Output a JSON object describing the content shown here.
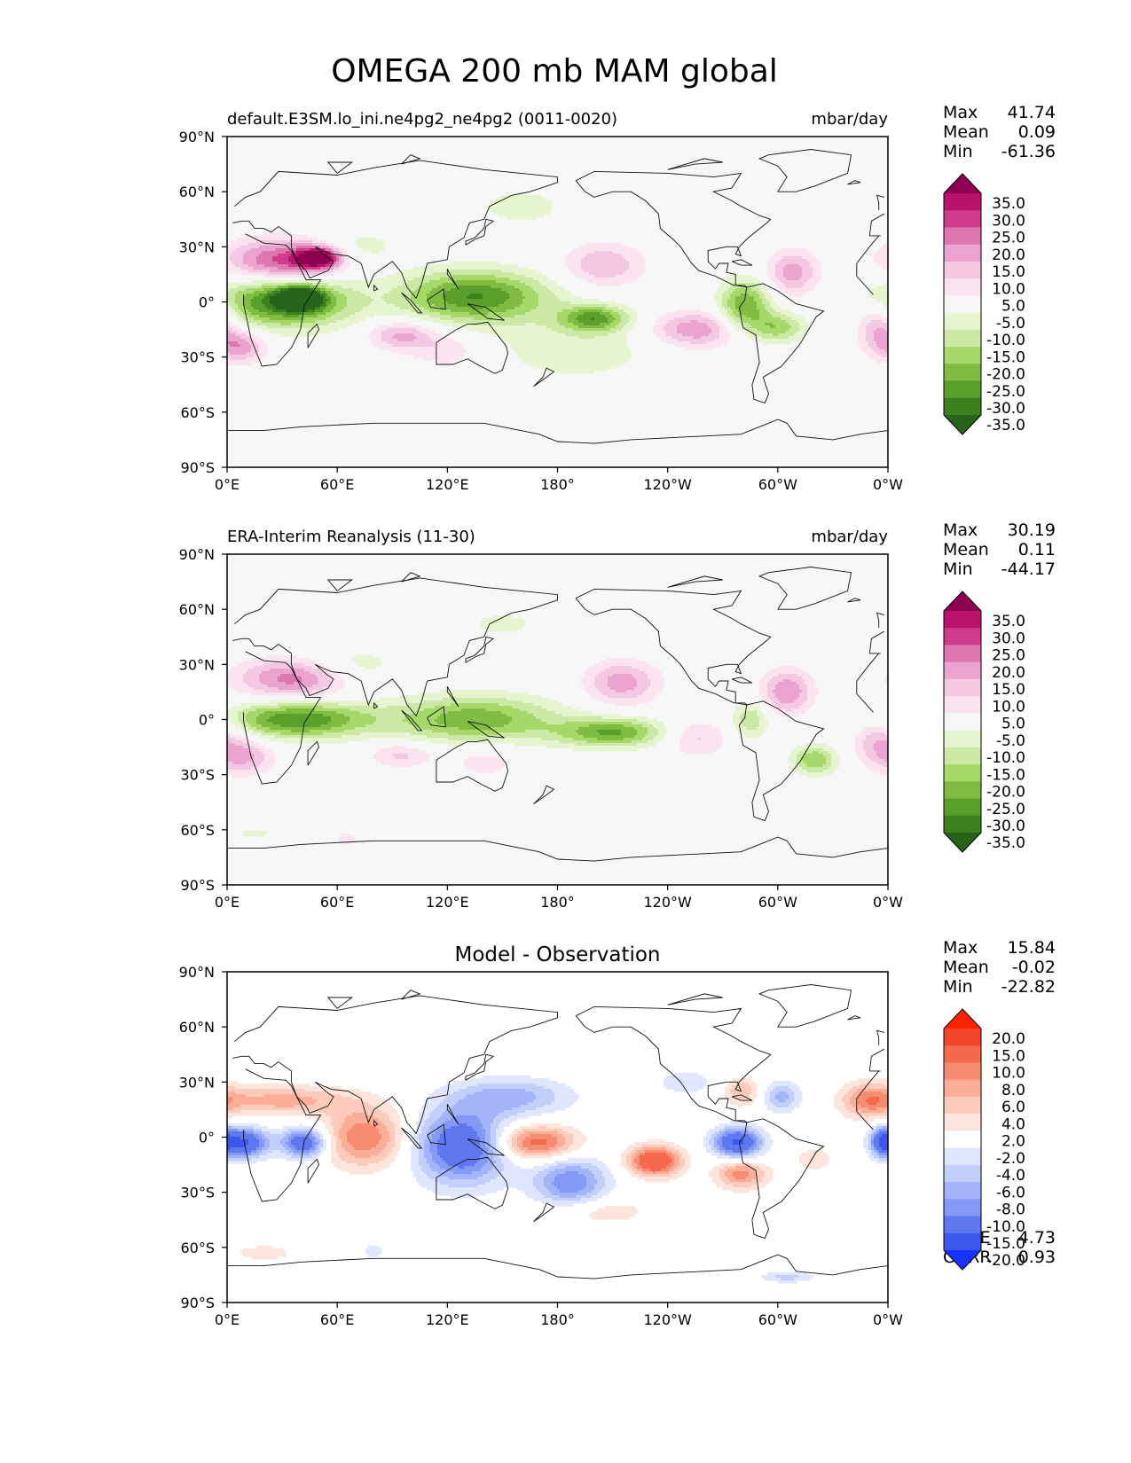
{
  "page_title": "OMEGA 200 mb MAM global",
  "chart_data": [
    {
      "type": "heatmap",
      "id": "test",
      "title_left": "default.E3SM.lo_ini.ne4pg2_ne4pg2 (0011-0020)",
      "title_center": "",
      "units": "mbar/day",
      "stats": [
        {
          "label": "Max",
          "value": "41.74"
        },
        {
          "label": "Mean",
          "value": "0.09"
        },
        {
          "label": "Min",
          "value": "-61.36"
        }
      ],
      "colorbar": {
        "labels": [
          "35.0",
          "30.0",
          "25.0",
          "20.0",
          "15.0",
          "10.0",
          "5.0",
          "-5.0",
          "-10.0",
          "-15.0",
          "-20.0",
          "-25.0",
          "-30.0",
          "-35.0"
        ],
        "colors": [
          "#8e0152",
          "#b8126c",
          "#cf3c8c",
          "#de77ae",
          "#eba4cf",
          "#f4c8e2",
          "#fbe4f0",
          "#f7f7f7",
          "#e6f5d0",
          "#cbe9a5",
          "#a6d96a",
          "#7fbc41",
          "#5a9e2c",
          "#3c7f1e",
          "#276419"
        ]
      },
      "xticks": [
        "0°E",
        "60°E",
        "120°E",
        "180°",
        "120°W",
        "60°W",
        "0°W"
      ],
      "yticks": [
        "90°N",
        "60°N",
        "30°N",
        "0°",
        "30°S",
        "60°S",
        "90°S"
      ],
      "xlim": [
        0,
        360
      ],
      "ylim": [
        -90,
        90
      ],
      "blobs": [
        {
          "lon": 30,
          "lat": 22,
          "rl": 30,
          "rt": 12,
          "v": 28
        },
        {
          "lon": 50,
          "lat": 24,
          "rl": 12,
          "rt": 6,
          "v": 36
        },
        {
          "lon": 30,
          "lat": 0,
          "rl": 38,
          "rt": 14,
          "v": -32
        },
        {
          "lon": 40,
          "lat": 2,
          "rl": 12,
          "rt": 6,
          "v": -40
        },
        {
          "lon": 8,
          "lat": -24,
          "rl": 14,
          "rt": 9,
          "v": 18
        },
        {
          "lon": 95,
          "lat": -18,
          "rl": 18,
          "rt": 8,
          "v": 17
        },
        {
          "lon": 135,
          "lat": 3,
          "rl": 40,
          "rt": 14,
          "v": -30
        },
        {
          "lon": 200,
          "lat": -9,
          "rl": 18,
          "rt": 7,
          "v": -25
        },
        {
          "lon": 205,
          "lat": 20,
          "rl": 22,
          "rt": 12,
          "v": 15
        },
        {
          "lon": 255,
          "lat": -15,
          "rl": 25,
          "rt": 10,
          "v": 20
        },
        {
          "lon": 282,
          "lat": -2,
          "rl": 14,
          "rt": 14,
          "v": -25
        },
        {
          "lon": 300,
          "lat": -14,
          "rl": 15,
          "rt": 8,
          "v": -18
        },
        {
          "lon": 308,
          "lat": 16,
          "rl": 14,
          "rt": 12,
          "v": 18
        },
        {
          "lon": 355,
          "lat": -12,
          "rl": 12,
          "rt": 14,
          "v": 18
        },
        {
          "lon": 190,
          "lat": -25,
          "rl": 50,
          "rt": 20,
          "v": -8
        },
        {
          "lon": 160,
          "lat": 52,
          "rl": 30,
          "rt": 12,
          "v": -7
        },
        {
          "lon": 120,
          "lat": -26,
          "rl": 20,
          "rt": 10,
          "v": 9
        },
        {
          "lon": 70,
          "lat": 30,
          "rl": 25,
          "rt": 10,
          "v": -8
        }
      ]
    },
    {
      "type": "heatmap",
      "id": "reference",
      "title_left": "ERA-Interim Reanalysis (11-30)",
      "title_center": "",
      "units": "mbar/day",
      "stats": [
        {
          "label": "Max",
          "value": "30.19"
        },
        {
          "label": "Mean",
          "value": "0.11"
        },
        {
          "label": "Min",
          "value": "-44.17"
        }
      ],
      "colorbar": {
        "labels": [
          "35.0",
          "30.0",
          "25.0",
          "20.0",
          "15.0",
          "10.0",
          "5.0",
          "-5.0",
          "-10.0",
          "-15.0",
          "-20.0",
          "-25.0",
          "-30.0",
          "-35.0"
        ],
        "colors": [
          "#8e0152",
          "#b8126c",
          "#cf3c8c",
          "#de77ae",
          "#eba4cf",
          "#f4c8e2",
          "#fbe4f0",
          "#f7f7f7",
          "#e6f5d0",
          "#cbe9a5",
          "#a6d96a",
          "#7fbc41",
          "#5a9e2c",
          "#3c7f1e",
          "#276419"
        ]
      },
      "xticks": [
        "0°E",
        "60°E",
        "120°E",
        "180°",
        "120°W",
        "60°W",
        "0°W"
      ],
      "yticks": [
        "90°N",
        "60°N",
        "30°N",
        "0°",
        "30°S",
        "60°S",
        "90°S"
      ],
      "xlim": [
        0,
        360
      ],
      "ylim": [
        -90,
        90
      ],
      "blobs": [
        {
          "lon": 35,
          "lat": 22,
          "rl": 30,
          "rt": 11,
          "v": 22
        },
        {
          "lon": 38,
          "lat": 0,
          "rl": 40,
          "rt": 10,
          "v": -30
        },
        {
          "lon": 135,
          "lat": 0,
          "rl": 45,
          "rt": 13,
          "v": -24
        },
        {
          "lon": 210,
          "lat": -7,
          "rl": 30,
          "rt": 8,
          "v": -25
        },
        {
          "lon": 95,
          "lat": -19,
          "rl": 18,
          "rt": 7,
          "v": 12
        },
        {
          "lon": 10,
          "lat": -20,
          "rl": 16,
          "rt": 10,
          "v": 15
        },
        {
          "lon": 215,
          "lat": 20,
          "rl": 20,
          "rt": 12,
          "v": 18
        },
        {
          "lon": 255,
          "lat": -10,
          "rl": 18,
          "rt": 10,
          "v": 12
        },
        {
          "lon": 285,
          "lat": 0,
          "rl": 10,
          "rt": 10,
          "v": -15
        },
        {
          "lon": 320,
          "lat": -22,
          "rl": 12,
          "rt": 8,
          "v": -20
        },
        {
          "lon": 305,
          "lat": 15,
          "rl": 14,
          "rt": 12,
          "v": 20
        },
        {
          "lon": 355,
          "lat": -10,
          "rl": 14,
          "rt": 14,
          "v": 15
        },
        {
          "lon": 150,
          "lat": 52,
          "rl": 30,
          "rt": 10,
          "v": -6
        },
        {
          "lon": 70,
          "lat": 30,
          "rl": 25,
          "rt": 10,
          "v": -8
        },
        {
          "lon": 15,
          "lat": -62,
          "rl": 15,
          "rt": 5,
          "v": -6
        },
        {
          "lon": 65,
          "lat": -65,
          "rl": 10,
          "rt": 6,
          "v": 6
        },
        {
          "lon": 140,
          "lat": -22,
          "rl": 20,
          "rt": 10,
          "v": 8
        }
      ]
    },
    {
      "type": "heatmap",
      "id": "difference",
      "title_left": "",
      "title_center": "Model - Observation",
      "units": "",
      "stats": [
        {
          "label": "Max",
          "value": "15.84"
        },
        {
          "label": "Mean",
          "value": "-0.02"
        },
        {
          "label": "Min",
          "value": "-22.82"
        }
      ],
      "extra_stats": [
        {
          "label": "RMSE",
          "value": "4.73"
        },
        {
          "label": "CORR",
          "value": "0.93"
        }
      ],
      "colorbar": {
        "labels": [
          "20.0",
          "15.0",
          "10.0",
          "8.0",
          "6.0",
          "4.0",
          "2.0",
          "-2.0",
          "-4.0",
          "-6.0",
          "-8.0",
          "-10.0",
          "-15.0",
          "-20.0"
        ],
        "colors": [
          "#ff2200",
          "#f2452d",
          "#f56a4e",
          "#f88c70",
          "#fbae97",
          "#fdcbbb",
          "#fde5dc",
          "#ffffff",
          "#dfe6fd",
          "#c3cffb",
          "#a3b5f8",
          "#8498f5",
          "#5f78f0",
          "#3b57ec",
          "#1733ff"
        ]
      },
      "xticks": [
        "0°E",
        "60°E",
        "120°E",
        "180°",
        "120°W",
        "60°W",
        "0°W"
      ],
      "yticks": [
        "90°N",
        "60°N",
        "30°N",
        "0°",
        "30°S",
        "60°S",
        "90°S"
      ],
      "xlim": [
        0,
        360
      ],
      "ylim": [
        -90,
        90
      ],
      "blobs": [
        {
          "lon": 8,
          "lat": -3,
          "rl": 14,
          "rt": 8,
          "v": -16
        },
        {
          "lon": 42,
          "lat": -3,
          "rl": 12,
          "rt": 8,
          "v": -14
        },
        {
          "lon": 30,
          "lat": 20,
          "rl": 38,
          "rt": 8,
          "v": 7
        },
        {
          "lon": 75,
          "lat": 0,
          "rl": 22,
          "rt": 16,
          "v": 10
        },
        {
          "lon": 128,
          "lat": -5,
          "rl": 25,
          "rt": 20,
          "v": -14
        },
        {
          "lon": 168,
          "lat": -3,
          "rl": 22,
          "rt": 9,
          "v": 12
        },
        {
          "lon": 187,
          "lat": -25,
          "rl": 20,
          "rt": 14,
          "v": -10
        },
        {
          "lon": 155,
          "lat": 22,
          "rl": 32,
          "rt": 10,
          "v": -7
        },
        {
          "lon": 233,
          "lat": -13,
          "rl": 14,
          "rt": 8,
          "v": 15
        },
        {
          "lon": 278,
          "lat": -3,
          "rl": 13,
          "rt": 8,
          "v": -16
        },
        {
          "lon": 280,
          "lat": -20,
          "rl": 14,
          "rt": 8,
          "v": 9
        },
        {
          "lon": 302,
          "lat": 22,
          "rl": 10,
          "rt": 8,
          "v": -7
        },
        {
          "lon": 280,
          "lat": 25,
          "rl": 10,
          "rt": 8,
          "v": 6
        },
        {
          "lon": 350,
          "lat": 20,
          "rl": 15,
          "rt": 10,
          "v": 8
        },
        {
          "lon": 357,
          "lat": -2,
          "rl": 6,
          "rt": 8,
          "v": -10
        },
        {
          "lon": 320,
          "lat": -12,
          "rl": 10,
          "rt": 6,
          "v": 4
        },
        {
          "lon": 20,
          "lat": -63,
          "rl": 15,
          "rt": 4,
          "v": 4
        },
        {
          "lon": 80,
          "lat": -62,
          "rl": 5,
          "rt": 4,
          "v": -4
        },
        {
          "lon": 305,
          "lat": -76,
          "rl": 14,
          "rt": 3,
          "v": -5
        },
        {
          "lon": 200,
          "lat": -40,
          "rl": 30,
          "rt": 8,
          "v": 4
        },
        {
          "lon": 250,
          "lat": 30,
          "rl": 20,
          "rt": 8,
          "v": -3
        }
      ]
    }
  ]
}
